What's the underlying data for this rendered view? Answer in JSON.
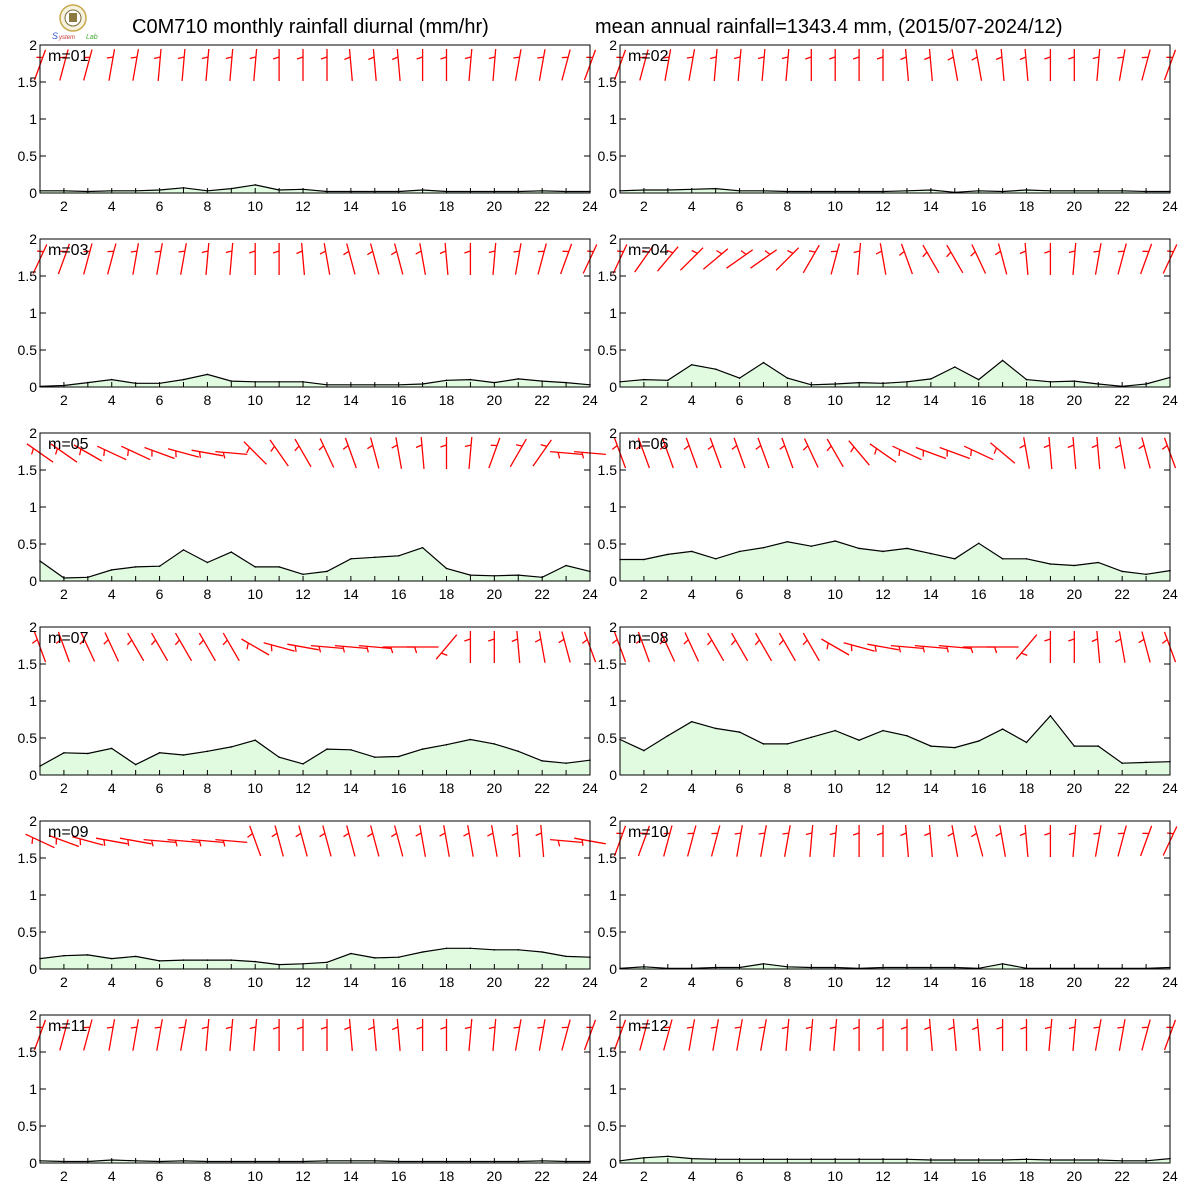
{
  "title_left": "C0M710 monthly rainfall diurnal (mm/hr)",
  "title_right": "mean annual rainfall=1343.4 mm, (2015/07-2024/12)",
  "colors": {
    "rain_line": "#000000",
    "rain_fill": "#e0fbe0",
    "wind_barb": "#ff0000",
    "axis": "#000000"
  },
  "icons": {
    "logo": "university-seal-logo"
  },
  "chart_data": [
    {
      "type": "area",
      "label": "m=01",
      "x": [
        1,
        2,
        3,
        4,
        5,
        6,
        7,
        8,
        9,
        10,
        11,
        12,
        13,
        14,
        15,
        16,
        17,
        18,
        19,
        20,
        21,
        22,
        23,
        24
      ],
      "xticks": [
        2,
        4,
        6,
        8,
        10,
        12,
        14,
        16,
        18,
        20,
        22,
        24
      ],
      "yticks": [
        "0",
        "0.5",
        "1",
        "1.5",
        "2"
      ],
      "ylim": [
        0,
        2
      ],
      "xlim": [
        1,
        24
      ],
      "values": [
        0.03,
        0.03,
        0.02,
        0.03,
        0.03,
        0.04,
        0.07,
        0.03,
        0.06,
        0.11,
        0.04,
        0.05,
        0.02,
        0.02,
        0.02,
        0.02,
        0.04,
        0.02,
        0.02,
        0.02,
        0.02,
        0.03,
        0.02,
        0.02
      ],
      "wind_dir": [
        200,
        195,
        195,
        190,
        190,
        185,
        185,
        185,
        185,
        185,
        180,
        180,
        180,
        175,
        175,
        175,
        180,
        180,
        185,
        185,
        190,
        190,
        195,
        200
      ]
    },
    {
      "type": "area",
      "label": "m=02",
      "x": [
        1,
        2,
        3,
        4,
        5,
        6,
        7,
        8,
        9,
        10,
        11,
        12,
        13,
        14,
        15,
        16,
        17,
        18,
        19,
        20,
        21,
        22,
        23,
        24
      ],
      "xticks": [
        2,
        4,
        6,
        8,
        10,
        12,
        14,
        16,
        18,
        20,
        22,
        24
      ],
      "yticks": [
        "0",
        "0.5",
        "1",
        "1.5",
        "2"
      ],
      "ylim": [
        0,
        2
      ],
      "xlim": [
        1,
        24
      ],
      "values": [
        0.03,
        0.04,
        0.04,
        0.05,
        0.06,
        0.03,
        0.03,
        0.02,
        0.02,
        0.02,
        0.02,
        0.02,
        0.03,
        0.04,
        0.01,
        0.03,
        0.02,
        0.04,
        0.03,
        0.03,
        0.03,
        0.03,
        0.02,
        0.02
      ],
      "wind_dir": [
        200,
        195,
        190,
        190,
        185,
        185,
        185,
        185,
        180,
        180,
        180,
        180,
        175,
        175,
        170,
        170,
        175,
        175,
        180,
        180,
        185,
        190,
        195,
        200
      ]
    },
    {
      "type": "area",
      "label": "m=03",
      "x": [
        1,
        2,
        3,
        4,
        5,
        6,
        7,
        8,
        9,
        10,
        11,
        12,
        13,
        14,
        15,
        16,
        17,
        18,
        19,
        20,
        21,
        22,
        23,
        24
      ],
      "xticks": [
        2,
        4,
        6,
        8,
        10,
        12,
        14,
        16,
        18,
        20,
        22,
        24
      ],
      "yticks": [
        "0",
        "0.5",
        "1",
        "1.5",
        "2"
      ],
      "ylim": [
        0,
        2
      ],
      "xlim": [
        1,
        24
      ],
      "values": [
        0.01,
        0.02,
        0.06,
        0.1,
        0.05,
        0.05,
        0.1,
        0.17,
        0.08,
        0.07,
        0.07,
        0.07,
        0.03,
        0.03,
        0.03,
        0.03,
        0.04,
        0.09,
        0.1,
        0.06,
        0.11,
        0.08,
        0.06,
        0.03
      ],
      "wind_dir": [
        205,
        200,
        195,
        195,
        190,
        190,
        190,
        185,
        185,
        180,
        180,
        175,
        170,
        165,
        165,
        165,
        170,
        175,
        180,
        185,
        190,
        195,
        200,
        205
      ]
    },
    {
      "type": "area",
      "label": "m=04",
      "x": [
        1,
        2,
        3,
        4,
        5,
        6,
        7,
        8,
        9,
        10,
        11,
        12,
        13,
        14,
        15,
        16,
        17,
        18,
        19,
        20,
        21,
        22,
        23,
        24
      ],
      "xticks": [
        2,
        4,
        6,
        8,
        10,
        12,
        14,
        16,
        18,
        20,
        22,
        24
      ],
      "yticks": [
        "0",
        "0.5",
        "1",
        "1.5",
        "2"
      ],
      "ylim": [
        0,
        2
      ],
      "xlim": [
        1,
        24
      ],
      "values": [
        0.07,
        0.1,
        0.09,
        0.3,
        0.24,
        0.12,
        0.33,
        0.12,
        0.03,
        0.04,
        0.06,
        0.05,
        0.07,
        0.11,
        0.27,
        0.1,
        0.36,
        0.1,
        0.07,
        0.08,
        0.04,
        0.01,
        0.04,
        0.13
      ],
      "wind_dir": [
        205,
        215,
        220,
        225,
        230,
        235,
        235,
        225,
        210,
        195,
        185,
        170,
        160,
        150,
        150,
        155,
        165,
        175,
        180,
        185,
        190,
        195,
        200,
        205
      ]
    },
    {
      "type": "area",
      "label": "m=05",
      "x": [
        1,
        2,
        3,
        4,
        5,
        6,
        7,
        8,
        9,
        10,
        11,
        12,
        13,
        14,
        15,
        16,
        17,
        18,
        19,
        20,
        21,
        22,
        23,
        24
      ],
      "xticks": [
        2,
        4,
        6,
        8,
        10,
        12,
        14,
        16,
        18,
        20,
        22,
        24
      ],
      "yticks": [
        "0",
        "0.5",
        "1",
        "1.5",
        "2"
      ],
      "ylim": [
        0,
        2
      ],
      "xlim": [
        1,
        24
      ],
      "values": [
        0.27,
        0.04,
        0.05,
        0.15,
        0.19,
        0.2,
        0.42,
        0.25,
        0.39,
        0.19,
        0.19,
        0.09,
        0.13,
        0.3,
        0.32,
        0.34,
        0.45,
        0.17,
        0.08,
        0.07,
        0.08,
        0.05,
        0.21,
        0.13
      ],
      "wind_dir": [
        125,
        125,
        120,
        115,
        115,
        110,
        105,
        100,
        95,
        135,
        145,
        150,
        155,
        160,
        165,
        170,
        175,
        180,
        185,
        200,
        210,
        215,
        95,
        95
      ]
    },
    {
      "type": "area",
      "label": "m=06",
      "x": [
        1,
        2,
        3,
        4,
        5,
        6,
        7,
        8,
        9,
        10,
        11,
        12,
        13,
        14,
        15,
        16,
        17,
        18,
        19,
        20,
        21,
        22,
        23,
        24
      ],
      "xticks": [
        2,
        4,
        6,
        8,
        10,
        12,
        14,
        16,
        18,
        20,
        22,
        24
      ],
      "yticks": [
        "0",
        "0.5",
        "1",
        "1.5",
        "2"
      ],
      "ylim": [
        0,
        2
      ],
      "xlim": [
        1,
        24
      ],
      "values": [
        0.29,
        0.29,
        0.36,
        0.4,
        0.3,
        0.4,
        0.45,
        0.53,
        0.47,
        0.54,
        0.44,
        0.4,
        0.44,
        0.37,
        0.3,
        0.51,
        0.3,
        0.3,
        0.23,
        0.21,
        0.25,
        0.13,
        0.09,
        0.14
      ],
      "wind_dir": [
        160,
        160,
        160,
        160,
        160,
        160,
        160,
        160,
        155,
        150,
        140,
        125,
        115,
        110,
        110,
        115,
        130,
        170,
        175,
        175,
        175,
        170,
        165,
        160
      ]
    },
    {
      "type": "area",
      "label": "m=07",
      "x": [
        1,
        2,
        3,
        4,
        5,
        6,
        7,
        8,
        9,
        10,
        11,
        12,
        13,
        14,
        15,
        16,
        17,
        18,
        19,
        20,
        21,
        22,
        23,
        24
      ],
      "xticks": [
        2,
        4,
        6,
        8,
        10,
        12,
        14,
        16,
        18,
        20,
        22,
        24
      ],
      "yticks": [
        "0",
        "0.5",
        "1",
        "1.5",
        "2"
      ],
      "ylim": [
        0,
        2
      ],
      "xlim": [
        1,
        24
      ],
      "values": [
        0.12,
        0.3,
        0.29,
        0.36,
        0.14,
        0.3,
        0.27,
        0.32,
        0.38,
        0.47,
        0.24,
        0.15,
        0.35,
        0.34,
        0.24,
        0.25,
        0.35,
        0.41,
        0.48,
        0.42,
        0.32,
        0.19,
        0.16,
        0.2
      ],
      "wind_dir": [
        160,
        160,
        155,
        155,
        150,
        150,
        150,
        150,
        150,
        120,
        105,
        100,
        95,
        95,
        95,
        90,
        90,
        40,
        180,
        180,
        175,
        170,
        165,
        160
      ]
    },
    {
      "type": "area",
      "label": "m=08",
      "x": [
        1,
        2,
        3,
        4,
        5,
        6,
        7,
        8,
        9,
        10,
        11,
        12,
        13,
        14,
        15,
        16,
        17,
        18,
        19,
        20,
        21,
        22,
        23,
        24
      ],
      "xticks": [
        2,
        4,
        6,
        8,
        10,
        12,
        14,
        16,
        18,
        20,
        22,
        24
      ],
      "yticks": [
        "0",
        "0.5",
        "1",
        "1.5",
        "2"
      ],
      "ylim": [
        0,
        2
      ],
      "xlim": [
        1,
        24
      ],
      "values": [
        0.48,
        0.33,
        0.53,
        0.72,
        0.63,
        0.58,
        0.42,
        0.42,
        0.51,
        0.6,
        0.47,
        0.6,
        0.53,
        0.39,
        0.37,
        0.46,
        0.62,
        0.44,
        0.8,
        0.39,
        0.39,
        0.16,
        0.17,
        0.18
      ],
      "wind_dir": [
        160,
        160,
        155,
        155,
        150,
        150,
        150,
        150,
        150,
        120,
        105,
        100,
        95,
        95,
        95,
        90,
        90,
        40,
        180,
        180,
        175,
        170,
        165,
        160
      ]
    },
    {
      "type": "area",
      "label": "m=09",
      "x": [
        1,
        2,
        3,
        4,
        5,
        6,
        7,
        8,
        9,
        10,
        11,
        12,
        13,
        14,
        15,
        16,
        17,
        18,
        19,
        20,
        21,
        22,
        23,
        24
      ],
      "xticks": [
        2,
        4,
        6,
        8,
        10,
        12,
        14,
        16,
        18,
        20,
        22,
        24
      ],
      "yticks": [
        "0",
        "0.5",
        "1",
        "1.5",
        "2"
      ],
      "ylim": [
        0,
        2
      ],
      "xlim": [
        1,
        24
      ],
      "values": [
        0.14,
        0.18,
        0.19,
        0.14,
        0.17,
        0.11,
        0.12,
        0.12,
        0.12,
        0.1,
        0.06,
        0.07,
        0.09,
        0.21,
        0.15,
        0.16,
        0.23,
        0.28,
        0.28,
        0.26,
        0.26,
        0.23,
        0.17,
        0.16
      ],
      "wind_dir": [
        115,
        110,
        105,
        100,
        100,
        95,
        95,
        95,
        95,
        160,
        165,
        165,
        165,
        165,
        165,
        165,
        170,
        170,
        170,
        170,
        175,
        175,
        95,
        100
      ]
    },
    {
      "type": "area",
      "label": "m=10",
      "x": [
        1,
        2,
        3,
        4,
        5,
        6,
        7,
        8,
        9,
        10,
        11,
        12,
        13,
        14,
        15,
        16,
        17,
        18,
        19,
        20,
        21,
        22,
        23,
        24
      ],
      "xticks": [
        2,
        4,
        6,
        8,
        10,
        12,
        14,
        16,
        18,
        20,
        22,
        24
      ],
      "yticks": [
        "0",
        "0.5",
        "1",
        "1.5",
        "2"
      ],
      "ylim": [
        0,
        2
      ],
      "xlim": [
        1,
        24
      ],
      "values": [
        0.01,
        0.03,
        0.01,
        0.01,
        0.02,
        0.02,
        0.07,
        0.03,
        0.02,
        0.02,
        0.01,
        0.02,
        0.02,
        0.02,
        0.02,
        0.01,
        0.07,
        0.01,
        0.01,
        0.01,
        0.01,
        0.01,
        0.01,
        0.02
      ],
      "wind_dir": [
        200,
        200,
        195,
        195,
        195,
        190,
        190,
        190,
        185,
        185,
        180,
        180,
        175,
        175,
        170,
        165,
        170,
        175,
        180,
        185,
        190,
        195,
        200,
        205
      ]
    },
    {
      "type": "area",
      "label": "m=11",
      "x": [
        1,
        2,
        3,
        4,
        5,
        6,
        7,
        8,
        9,
        10,
        11,
        12,
        13,
        14,
        15,
        16,
        17,
        18,
        19,
        20,
        21,
        22,
        23,
        24
      ],
      "xticks": [
        2,
        4,
        6,
        8,
        10,
        12,
        14,
        16,
        18,
        20,
        22,
        24
      ],
      "yticks": [
        "0",
        "0.5",
        "1",
        "1.5",
        "2"
      ],
      "ylim": [
        0,
        2
      ],
      "xlim": [
        1,
        24
      ],
      "values": [
        0.03,
        0.02,
        0.02,
        0.04,
        0.03,
        0.02,
        0.03,
        0.02,
        0.02,
        0.02,
        0.02,
        0.02,
        0.03,
        0.03,
        0.03,
        0.02,
        0.02,
        0.02,
        0.02,
        0.02,
        0.02,
        0.03,
        0.02,
        0.02
      ],
      "wind_dir": [
        200,
        195,
        195,
        190,
        190,
        190,
        190,
        185,
        185,
        185,
        180,
        180,
        180,
        175,
        175,
        175,
        180,
        180,
        185,
        185,
        190,
        190,
        195,
        200
      ]
    },
    {
      "type": "area",
      "label": "m=12",
      "x": [
        1,
        2,
        3,
        4,
        5,
        6,
        7,
        8,
        9,
        10,
        11,
        12,
        13,
        14,
        15,
        16,
        17,
        18,
        19,
        20,
        21,
        22,
        23,
        24
      ],
      "xticks": [
        2,
        4,
        6,
        8,
        10,
        12,
        14,
        16,
        18,
        20,
        22,
        24
      ],
      "yticks": [
        "0",
        "0.5",
        "1",
        "1.5",
        "2"
      ],
      "ylim": [
        0,
        2
      ],
      "xlim": [
        1,
        24
      ],
      "values": [
        0.03,
        0.07,
        0.09,
        0.06,
        0.05,
        0.05,
        0.05,
        0.05,
        0.05,
        0.05,
        0.05,
        0.05,
        0.05,
        0.04,
        0.04,
        0.04,
        0.04,
        0.05,
        0.04,
        0.04,
        0.04,
        0.03,
        0.03,
        0.06
      ],
      "wind_dir": [
        200,
        195,
        195,
        190,
        190,
        190,
        190,
        185,
        185,
        185,
        180,
        180,
        180,
        175,
        175,
        175,
        180,
        180,
        185,
        185,
        190,
        190,
        195,
        200
      ]
    }
  ]
}
